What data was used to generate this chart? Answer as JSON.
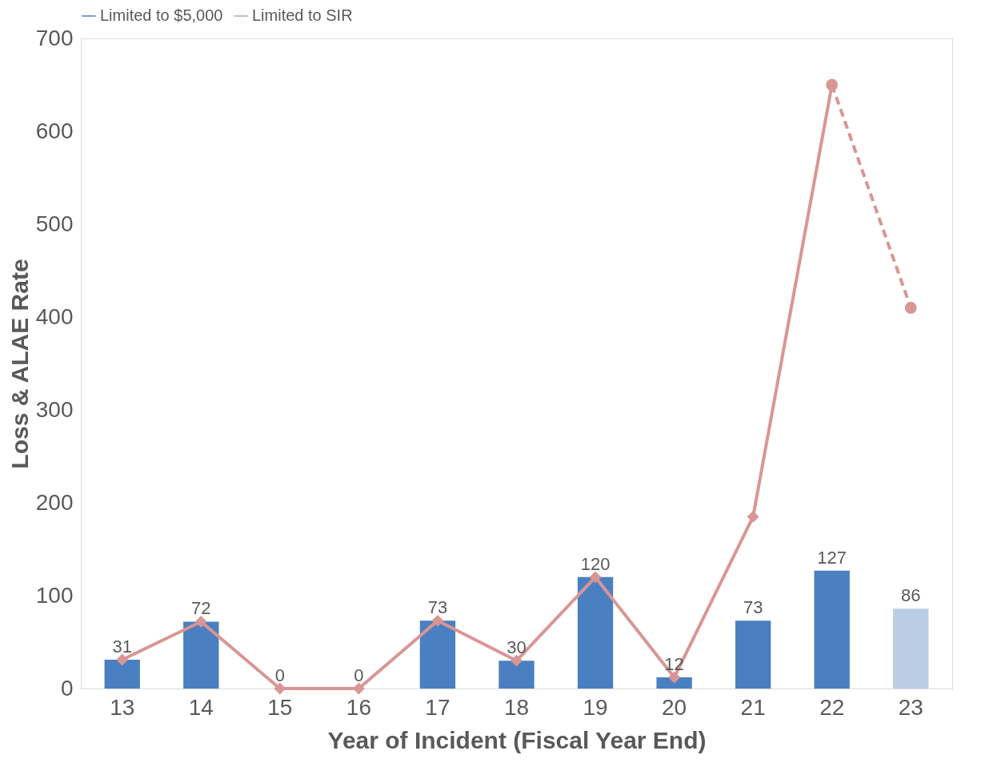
{
  "chart_data": {
    "type": "bar",
    "xlabel": "Year of Incident (Fiscal Year End)",
    "ylabel": "Loss & ALAE Rate",
    "categories": [
      "13",
      "14",
      "15",
      "16",
      "17",
      "18",
      "19",
      "20",
      "21",
      "22",
      "23"
    ],
    "series": [
      {
        "name": "Limited to $5,000",
        "color": "#4a7fc1",
        "colors": [
          "#4a7fc1",
          "#4a7fc1",
          "#4a7fc1",
          "#4a7fc1",
          "#4a7fc1",
          "#4a7fc1",
          "#4a7fc1",
          "#4a7fc1",
          "#4a7fc1",
          "#4a7fc1",
          "#b9cde5"
        ],
        "values": [
          31,
          72,
          0,
          0,
          73,
          30,
          120,
          12,
          73,
          127,
          86
        ],
        "value_labels": [
          "31",
          "72",
          "0",
          "0",
          "73",
          "30",
          "120",
          "12",
          "73",
          "127",
          "86"
        ]
      },
      {
        "name": "Limited to SIR",
        "type": "line",
        "color": "#d99694",
        "marker": "diamond",
        "line_style": "solid",
        "values": [
          31,
          72,
          0,
          0,
          73,
          30,
          120,
          12,
          185,
          650,
          null
        ]
      },
      {
        "type": "line",
        "color": "#d99694",
        "marker": "circle",
        "line_style": "dashed",
        "values": [
          null,
          null,
          null,
          null,
          null,
          null,
          null,
          null,
          null,
          650,
          410
        ]
      }
    ],
    "ylim": [
      0,
      700
    ],
    "yticks": [
      0,
      100,
      200,
      300,
      400,
      500,
      600,
      700
    ],
    "grid": false,
    "legend": "top"
  }
}
